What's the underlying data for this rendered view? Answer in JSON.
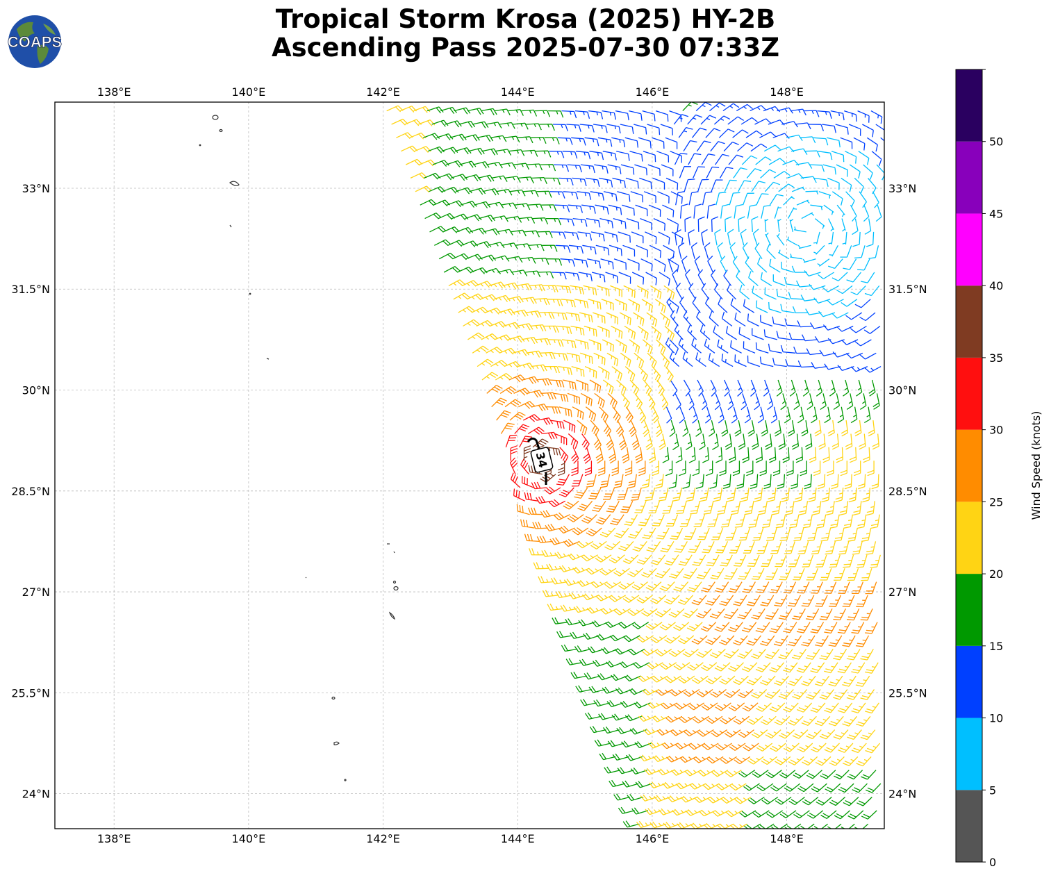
{
  "header": {
    "logo_text": "COAPS",
    "title_line1": "Tropical Storm Krosa (2025) HY-2B",
    "title_line2": "Ascending Pass 2025-07-30 07:33Z"
  },
  "map": {
    "lon_range": [
      137.12,
      149.45
    ],
    "lat_range": [
      23.48,
      34.28
    ],
    "lon_ticks": [
      {
        "value": 138,
        "label": "138°E"
      },
      {
        "value": 140,
        "label": "140°E"
      },
      {
        "value": 142,
        "label": "142°E"
      },
      {
        "value": 144,
        "label": "144°E"
      },
      {
        "value": 146,
        "label": "146°E"
      },
      {
        "value": 148,
        "label": "148°E"
      }
    ],
    "lat_ticks": [
      {
        "value": 33,
        "label": "33°N"
      },
      {
        "value": 31.5,
        "label": "31.5°N"
      },
      {
        "value": 30,
        "label": "30°N"
      },
      {
        "value": 28.5,
        "label": "28.5°N"
      },
      {
        "value": 27,
        "label": "27°N"
      },
      {
        "value": 25.5,
        "label": "25.5°N"
      },
      {
        "value": 24,
        "label": "24°N"
      }
    ],
    "gridlines": true,
    "storm_center_label": "34",
    "storm_center": {
      "lon": 144.4,
      "lat": 28.95
    }
  },
  "colorbar": {
    "label": "Wind Speed (knots)",
    "placement": "right",
    "ticks": [
      "0",
      "5",
      "10",
      "15",
      "20",
      "25",
      "30",
      "35",
      "40",
      "45",
      "50"
    ],
    "bins": [
      {
        "min": 0,
        "max": 5,
        "color": "#555555"
      },
      {
        "min": 5,
        "max": 10,
        "color": "#00bfff"
      },
      {
        "min": 10,
        "max": 15,
        "color": "#0040ff"
      },
      {
        "min": 15,
        "max": 20,
        "color": "#009900"
      },
      {
        "min": 20,
        "max": 25,
        "color": "#ffd414"
      },
      {
        "min": 25,
        "max": 30,
        "color": "#ff8c00"
      },
      {
        "min": 30,
        "max": 35,
        "color": "#ff0f0f"
      },
      {
        "min": 35,
        "max": 40,
        "color": "#7f3b22"
      },
      {
        "min": 40,
        "max": 45,
        "color": "#ff00ff"
      },
      {
        "min": 45,
        "max": 50,
        "color": "#8800bb"
      },
      {
        "min": 50,
        "max": 55,
        "color": "#2a0060"
      }
    ]
  }
}
